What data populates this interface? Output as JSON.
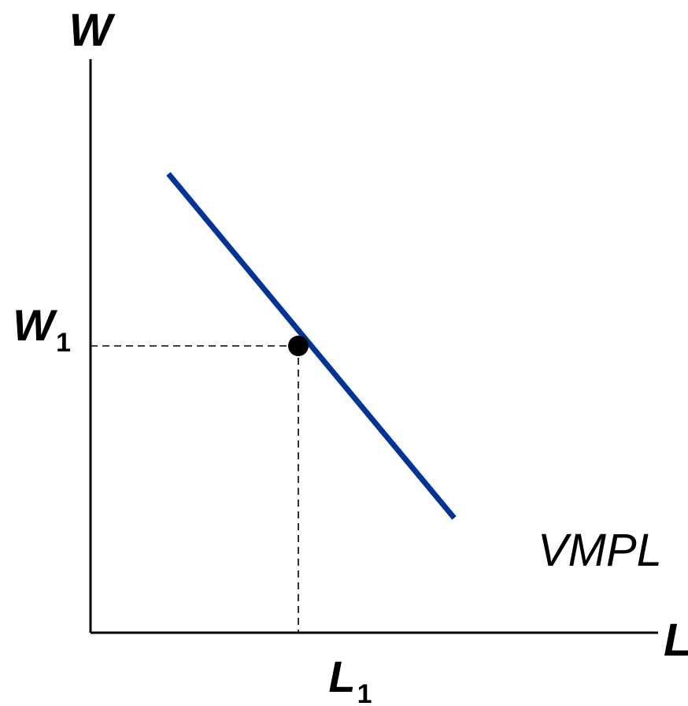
{
  "chart_data": {
    "type": "line",
    "xlabel": "L",
    "ylabel": "W",
    "xlim": [
      0,
      10
    ],
    "ylim": [
      0,
      10
    ],
    "grid": false,
    "series": [
      {
        "name": "VMPL",
        "color": "#003399",
        "x": [
          1.5,
          7
        ],
        "y": [
          8,
          2
        ]
      }
    ],
    "point": {
      "x": 4,
      "y": 5
    },
    "x_ticks": [
      {
        "value": 4,
        "label": "L",
        "subscript": "1"
      }
    ],
    "y_ticks": [
      {
        "value": 5,
        "label": "W",
        "subscript": "1"
      }
    ]
  }
}
